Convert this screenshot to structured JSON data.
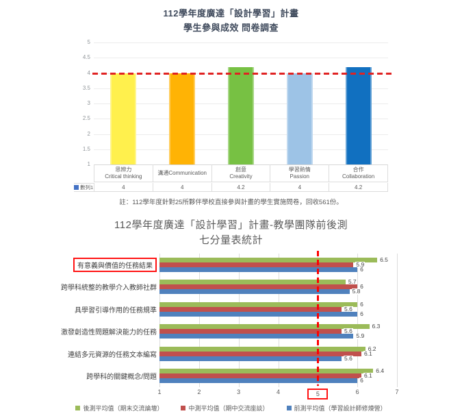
{
  "chart_data": [
    {
      "type": "bar",
      "orientation": "vertical",
      "title_line1": "112學年度廣達「設計學習」計畫",
      "title_line2": "學生參與成效 問卷調查",
      "note": "註：112學年度針對25所夥伴學校直接參與計畫的學生實施問卷，回收561份。",
      "categories_zh": [
        "思辨力",
        "溝通Communication",
        "創意",
        "學習熱情",
        "合作"
      ],
      "categories_en": [
        "Critical thinking",
        "",
        "Creativity",
        "Passion",
        "Collaboration"
      ],
      "series": [
        {
          "name": "數列1",
          "values": [
            4,
            4,
            4.2,
            4,
            4.2
          ]
        }
      ],
      "series_swatch_color": "#4472C4",
      "bar_colors": [
        "#FFF04D",
        "#FFB305",
        "#77C143",
        "#9DC3E6",
        "#1170C0"
      ],
      "ylim": [
        1,
        5
      ],
      "y_ticks": [
        5,
        4.5,
        4,
        3.5,
        3,
        2.5,
        2,
        1.5,
        1
      ],
      "reference_line": {
        "axis": "y",
        "value": 4,
        "color": "#E02222",
        "style": "dashed"
      },
      "grid": "horizontal",
      "legend_position": "table-left"
    },
    {
      "type": "bar",
      "orientation": "horizontal",
      "title_line1": "112學年度廣達「設計學習」計畫-教學團隊前後測",
      "title_line2": "七分量表統計",
      "categories": [
        "有意義與價值的任務結果",
        "跨學科統整的教學介入教師社群",
        "具學習引導作用的任務規準",
        "激發創造性問題解決能力的任務",
        "連結多元資源的任務文本編寫",
        "跨學科的關鍵概念/問題"
      ],
      "series": [
        {
          "name": "後測平均值（期末交流論壇）",
          "color": "#9BBB59",
          "values": [
            6.5,
            5.7,
            6,
            6.3,
            6.2,
            6.4
          ]
        },
        {
          "name": "中測平均值（期中交流座談）",
          "color": "#C0504D",
          "values": [
            5.9,
            6,
            5.6,
            5.6,
            6.1,
            6.1
          ]
        },
        {
          "name": "前測平均值（學習設計師修煉營）",
          "color": "#4F81BD",
          "values": [
            6,
            5.8,
            6,
            5.9,
            5.6,
            6
          ]
        }
      ],
      "xlim": [
        1,
        7
      ],
      "x_ticks": [
        1,
        2,
        3,
        4,
        5,
        6,
        7
      ],
      "reference_line": {
        "axis": "x",
        "value": 5,
        "color": "#FF0000",
        "style": "dashed"
      },
      "highlight": {
        "boxed_category_index": 0,
        "boxed_x_tick": 5,
        "box_color": "#FF1212"
      },
      "grid": "vertical",
      "legend_position": "bottom"
    }
  ]
}
